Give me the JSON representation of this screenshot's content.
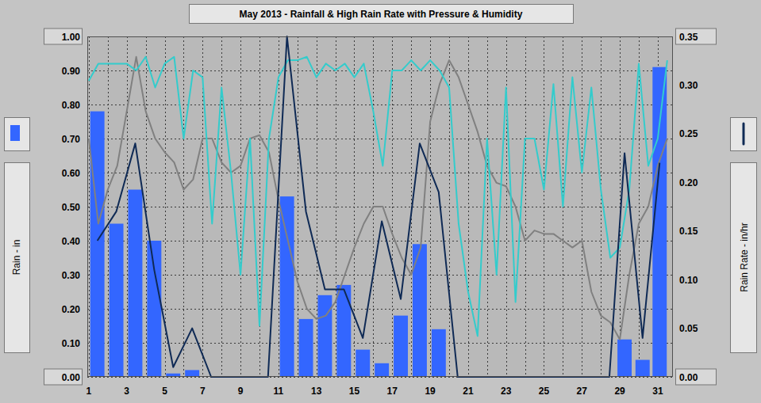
{
  "chart_data": {
    "type": "bar",
    "title": "May 2013 - Rainfall & High Rain Rate with Pressure & Humidity",
    "ylabel": "Rain - in",
    "y2label": "Rain Rate - in/hr",
    "xlim": [
      0.92,
      31.8
    ],
    "xticks": [
      1,
      3,
      5,
      7,
      9,
      11,
      13,
      15,
      17,
      19,
      21,
      23,
      25,
      27,
      29,
      31
    ],
    "ylim": [
      0,
      1
    ],
    "yticks": [
      {
        "value": 0,
        "label": "0.00"
      },
      {
        "value": 0.1,
        "label": "0.10"
      },
      {
        "value": 0.2,
        "label": "0.20"
      },
      {
        "value": 0.3,
        "label": "0.30"
      },
      {
        "value": 0.4,
        "label": "0.40"
      },
      {
        "value": 0.5,
        "label": "0.50"
      },
      {
        "value": 0.6,
        "label": "0.60"
      },
      {
        "value": 0.7,
        "label": "0.70"
      },
      {
        "value": 0.8,
        "label": "0.80"
      },
      {
        "value": 0.9,
        "label": "0.90"
      },
      {
        "value": 1,
        "label": "1.00"
      }
    ],
    "y2lim": [
      0,
      0.35
    ],
    "y2ticks": [
      {
        "value": 0,
        "label": "0.00"
      },
      {
        "value": 0.05,
        "label": "0.05"
      },
      {
        "value": 0.1,
        "label": "0.10"
      },
      {
        "value": 0.15,
        "label": "0.15"
      },
      {
        "value": 0.2,
        "label": "0.20"
      },
      {
        "value": 0.25,
        "label": "0.25"
      },
      {
        "value": 0.3,
        "label": "0.30"
      },
      {
        "value": 0.35,
        "label": "0.35"
      }
    ],
    "grid": true,
    "series": [
      {
        "type": "bar",
        "color": "#3366ff",
        "x": [
          1.45,
          2.45,
          3.45,
          4.45,
          5.45,
          6.45,
          7.45,
          8.45,
          9.45,
          10.45,
          11.45,
          12.45,
          13.45,
          14.45,
          15.45,
          16.45,
          17.45,
          18.45,
          19.45,
          20.45,
          21.45,
          22.45,
          23.45,
          24.45,
          25.45,
          26.45,
          27.45,
          28.45,
          29.25,
          30.2,
          31.1
        ],
        "values": [
          0.78,
          0.45,
          0.55,
          0.4,
          0.01,
          0.02,
          0,
          0,
          0,
          0,
          0.53,
          0.17,
          0.24,
          0.27,
          0.08,
          0.04,
          0.18,
          0.39,
          0.14,
          0,
          0,
          0,
          0,
          0,
          0,
          0,
          0,
          0,
          0.11,
          0.05,
          0.91
        ]
      },
      {
        "type": "line",
        "axis": "y2",
        "color": "#0f2a55",
        "x": [
          1.45,
          2.45,
          3.45,
          4.45,
          5.45,
          6.45,
          7.45,
          8.45,
          9.45,
          10.45,
          11.45,
          12.45,
          13.45,
          14.45,
          15.45,
          16.45,
          17.45,
          18.45,
          19.45,
          20.45,
          21.45,
          22.45,
          23.45,
          24.45,
          25.45,
          26.45,
          27.45,
          28.45,
          29.25,
          30.2,
          31.1
        ],
        "values": [
          0.14,
          0.17,
          0.24,
          0.11,
          0.01,
          0.05,
          0,
          0,
          0,
          0,
          0.35,
          0.17,
          0.09,
          0.09,
          0.04,
          0.16,
          0.08,
          0.24,
          0.19,
          0,
          0,
          0,
          0,
          0,
          0,
          0,
          0,
          0,
          0.23,
          0.04,
          0.22
        ]
      },
      {
        "type": "line",
        "color": "#808080",
        "x": [
          1,
          1.5,
          2,
          2.5,
          3,
          3.5,
          4,
          4.5,
          5,
          5.5,
          6,
          6.5,
          7,
          7.5,
          8,
          8.5,
          9,
          9.5,
          10,
          10.5,
          11,
          11.5,
          12,
          12.5,
          13,
          13.5,
          14,
          14.5,
          15,
          15.5,
          16,
          16.5,
          17,
          17.5,
          18,
          18.5,
          19,
          19.5,
          20,
          20.5,
          21,
          21.5,
          22,
          22.5,
          23,
          23.5,
          24,
          24.5,
          25,
          25.5,
          26,
          26.5,
          27,
          27.5,
          28,
          28.5,
          29,
          29.5,
          30,
          30.5,
          31,
          31.5
        ],
        "values": [
          0.7,
          0.45,
          0.55,
          0.62,
          0.78,
          0.94,
          0.78,
          0.7,
          0.66,
          0.63,
          0.55,
          0.58,
          0.7,
          0.7,
          0.63,
          0.6,
          0.62,
          0.7,
          0.71,
          0.66,
          0.52,
          0.4,
          0.28,
          0.2,
          0.17,
          0.18,
          0.22,
          0.3,
          0.38,
          0.45,
          0.5,
          0.5,
          0.42,
          0.35,
          0.3,
          0.38,
          0.75,
          0.86,
          0.93,
          0.88,
          0.8,
          0.72,
          0.62,
          0.57,
          0.56,
          0.5,
          0.4,
          0.43,
          0.42,
          0.42,
          0.4,
          0.38,
          0.4,
          0.25,
          0.18,
          0.16,
          0.11,
          0.3,
          0.45,
          0.5,
          0.62,
          0.7
        ]
      },
      {
        "type": "line",
        "color": "#33cccc",
        "x": [
          1,
          1.5,
          2,
          2.5,
          3,
          3.5,
          4,
          4.5,
          5,
          5.5,
          6,
          6.5,
          7,
          7.5,
          8,
          8.5,
          9,
          9.5,
          10,
          10.5,
          11,
          11.5,
          12,
          12.5,
          13,
          13.5,
          14,
          14.5,
          15,
          15.5,
          16,
          16.5,
          17,
          17.5,
          18,
          18.5,
          19,
          19.5,
          20,
          20.5,
          21,
          21.5,
          22,
          22.5,
          23,
          23.5,
          24,
          24.5,
          25,
          25.5,
          26,
          26.5,
          27,
          27.5,
          28,
          28.5,
          29,
          29.5,
          30,
          30.5,
          31,
          31.5
        ],
        "values": [
          0.87,
          0.92,
          0.92,
          0.92,
          0.92,
          0.9,
          0.94,
          0.85,
          0.92,
          0.94,
          0.7,
          0.9,
          0.88,
          0.45,
          0.85,
          0.6,
          0.3,
          0.7,
          0.15,
          0.7,
          0.88,
          0.93,
          0.93,
          0.94,
          0.88,
          0.92,
          0.9,
          0.92,
          0.88,
          0.92,
          0.78,
          0.62,
          0.9,
          0.9,
          0.93,
          0.9,
          0.93,
          0.9,
          0.85,
          0.45,
          0.25,
          0.12,
          0.7,
          0.3,
          0.85,
          0.22,
          0.7,
          0.7,
          0.55,
          0.86,
          0.5,
          0.88,
          0.6,
          0.85,
          0.55,
          0.35,
          0.38,
          0.55,
          0.92,
          0.62,
          0.7,
          0.93
        ]
      }
    ]
  }
}
